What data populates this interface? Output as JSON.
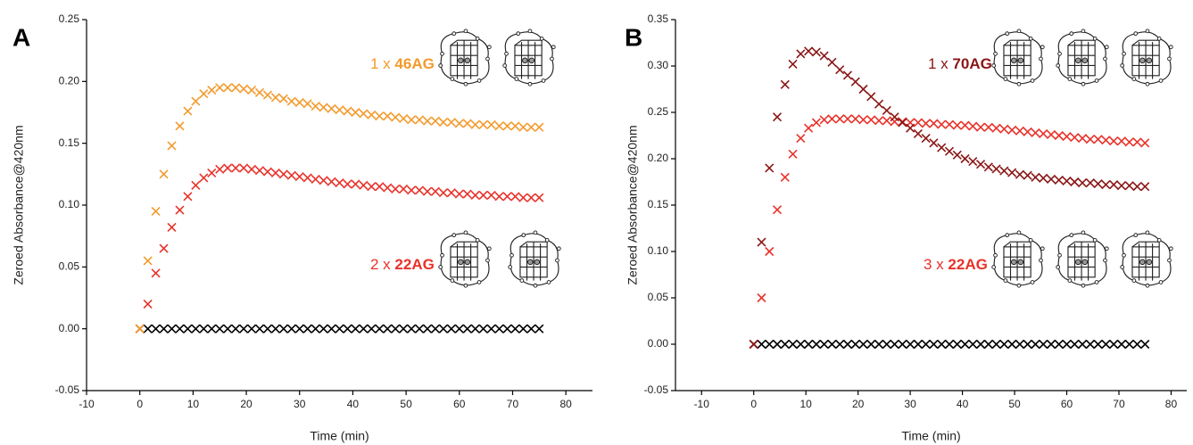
{
  "chart_data": [
    {
      "type": "scatter",
      "panel_label": "A",
      "x_label": "Time (min)",
      "y_label": "Zeroed Absorbance@420nm",
      "xlim": [
        -10,
        85
      ],
      "ylim": [
        -0.05,
        0.25
      ],
      "xticks": [
        -10,
        0,
        10,
        20,
        30,
        40,
        50,
        60,
        70,
        80
      ],
      "yticks": [
        -0.05,
        {
          "value": 0,
          "label": "0.00"
        },
        0.05,
        {
          "value": 0.1,
          "label": "0.10"
        },
        0.15,
        {
          "value": 0.2,
          "label": "0.20"
        },
        0.25
      ],
      "x": [
        0,
        1.5,
        3,
        4.5,
        6,
        7.5,
        9,
        10.5,
        12,
        13.5,
        15,
        16.5,
        18,
        19.5,
        21,
        22.5,
        24,
        25.5,
        27,
        28.5,
        30,
        31.5,
        33,
        34.5,
        36,
        37.5,
        39,
        40.5,
        42,
        43.5,
        45,
        46.5,
        48,
        49.5,
        51,
        52.5,
        54,
        55.5,
        57,
        58.5,
        60,
        61.5,
        63,
        64.5,
        66,
        67.5,
        69,
        70.5,
        72,
        73.5,
        75
      ],
      "series": [
        {
          "multiplier": "1 x",
          "name": "46AG",
          "color": "#f39a2c",
          "values": [
            0,
            0.055,
            0.095,
            0.125,
            0.148,
            0.164,
            0.176,
            0.184,
            0.19,
            0.193,
            0.195,
            0.195,
            0.195,
            0.194,
            0.193,
            0.191,
            0.189,
            0.187,
            0.186,
            0.184,
            0.183,
            0.182,
            0.18,
            0.179,
            0.178,
            0.177,
            0.176,
            0.175,
            0.174,
            0.173,
            0.172,
            0.172,
            0.171,
            0.17,
            0.169,
            0.169,
            0.168,
            0.168,
            0.167,
            0.167,
            0.166,
            0.166,
            0.165,
            0.165,
            0.165,
            0.164,
            0.164,
            0.164,
            0.163,
            0.163,
            0.163
          ]
        },
        {
          "multiplier": "2 x",
          "name": "22AG",
          "color": "#e8322a",
          "values": [
            0,
            0.02,
            0.045,
            0.065,
            0.082,
            0.096,
            0.107,
            0.116,
            0.122,
            0.126,
            0.129,
            0.13,
            0.13,
            0.13,
            0.129,
            0.128,
            0.127,
            0.126,
            0.125,
            0.124,
            0.123,
            0.122,
            0.121,
            0.12,
            0.119,
            0.118,
            0.117,
            0.117,
            0.116,
            0.115,
            0.115,
            0.114,
            0.113,
            0.113,
            0.112,
            0.112,
            0.111,
            0.111,
            0.11,
            0.11,
            0.109,
            0.109,
            0.108,
            0.108,
            0.108,
            0.107,
            0.107,
            0.107,
            0.106,
            0.106,
            0.106
          ]
        },
        {
          "color": "#000000",
          "values": [
            0,
            0,
            0,
            0,
            0,
            0,
            0,
            0,
            0,
            0,
            0,
            0,
            0,
            0,
            0,
            0,
            0,
            0,
            0,
            0,
            0,
            0,
            0,
            0,
            0,
            0,
            0,
            0,
            0,
            0,
            0,
            0,
            0,
            0,
            0,
            0,
            0,
            0,
            0,
            0,
            0,
            0,
            0,
            0,
            0,
            0,
            0,
            0,
            0,
            0,
            0
          ]
        }
      ]
    },
    {
      "type": "scatter",
      "panel_label": "B",
      "x_label": "Time (min)",
      "y_label": "Zeroed Absorbance@420nm",
      "xlim": [
        -15,
        83
      ],
      "ylim": [
        -0.05,
        0.35
      ],
      "xticks": [
        -10,
        0,
        10,
        20,
        30,
        40,
        50,
        60,
        70,
        80
      ],
      "yticks": [
        -0.05,
        {
          "value": 0,
          "label": "0.00"
        },
        0.05,
        {
          "value": 0.1,
          "label": "0.10"
        },
        0.15,
        {
          "value": 0.2,
          "label": "0.20"
        },
        0.25,
        {
          "value": 0.3,
          "label": "0.30"
        },
        0.35
      ],
      "x": [
        0,
        1.5,
        3,
        4.5,
        6,
        7.5,
        9,
        10.5,
        12,
        13.5,
        15,
        16.5,
        18,
        19.5,
        21,
        22.5,
        24,
        25.5,
        27,
        28.5,
        30,
        31.5,
        33,
        34.5,
        36,
        37.5,
        39,
        40.5,
        42,
        43.5,
        45,
        46.5,
        48,
        49.5,
        51,
        52.5,
        54,
        55.5,
        57,
        58.5,
        60,
        61.5,
        63,
        64.5,
        66,
        67.5,
        69,
        70.5,
        72,
        73.5,
        75
      ],
      "series": [
        {
          "multiplier": "1 x",
          "name": "70AG",
          "color": "#8a1616",
          "values": [
            0,
            0.11,
            0.19,
            0.245,
            0.28,
            0.302,
            0.313,
            0.316,
            0.315,
            0.311,
            0.304,
            0.296,
            0.29,
            0.283,
            0.275,
            0.267,
            0.259,
            0.252,
            0.245,
            0.239,
            0.233,
            0.227,
            0.222,
            0.217,
            0.212,
            0.208,
            0.204,
            0.2,
            0.197,
            0.194,
            0.191,
            0.189,
            0.187,
            0.185,
            0.183,
            0.182,
            0.18,
            0.179,
            0.178,
            0.177,
            0.176,
            0.175,
            0.174,
            0.174,
            0.173,
            0.172,
            0.172,
            0.171,
            0.171,
            0.17,
            0.17
          ]
        },
        {
          "multiplier": "3 x",
          "name": "22AG",
          "color": "#e8322a",
          "values": [
            0,
            0.05,
            0.1,
            0.145,
            0.18,
            0.205,
            0.222,
            0.233,
            0.239,
            0.242,
            0.243,
            0.243,
            0.243,
            0.243,
            0.242,
            0.242,
            0.241,
            0.241,
            0.24,
            0.24,
            0.239,
            0.239,
            0.238,
            0.238,
            0.237,
            0.237,
            0.236,
            0.236,
            0.235,
            0.234,
            0.234,
            0.233,
            0.232,
            0.231,
            0.23,
            0.229,
            0.228,
            0.227,
            0.226,
            0.225,
            0.224,
            0.223,
            0.222,
            0.221,
            0.221,
            0.22,
            0.219,
            0.219,
            0.218,
            0.218,
            0.217
          ]
        },
        {
          "color": "#000000",
          "values": [
            0,
            0,
            0,
            0,
            0,
            0,
            0,
            0,
            0,
            0,
            0,
            0,
            0,
            0,
            0,
            0,
            0,
            0,
            0,
            0,
            0,
            0,
            0,
            0,
            0,
            0,
            0,
            0,
            0,
            0,
            0,
            0,
            0,
            0,
            0,
            0,
            0,
            0,
            0,
            0,
            0,
            0,
            0,
            0,
            0,
            0,
            0,
            0,
            0,
            0,
            0
          ]
        }
      ]
    }
  ]
}
